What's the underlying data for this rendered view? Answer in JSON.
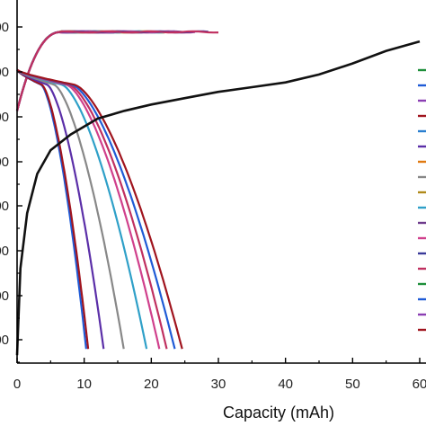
{
  "chart_data": {
    "type": "line",
    "xlabel": "Capacity (mAh)",
    "ylabel": "",
    "xlim": [
      0,
      60
    ],
    "ylim": [
      2.0,
      4.2
    ],
    "x_ticks": [
      "0",
      "10",
      "20",
      "30",
      "40",
      "50",
      "60"
    ],
    "y_ticks_visible": [
      "00",
      "00",
      "00",
      "00",
      "00",
      "00",
      "00"
    ],
    "grid": false,
    "legend": "right (clipped)",
    "colors": {
      "axis": "#000000",
      "black_series": "#111111",
      "series_palette": [
        "#1e8f3a",
        "#1f5bd6",
        "#8b3fb3",
        "#a0141e",
        "#2a7fd0",
        "#5b2fa8",
        "#e07a10",
        "#888888",
        "#b08a1a",
        "#2fa0c8",
        "#6e3b8c",
        "#d0408c",
        "#3a3a9a",
        "#c03060"
      ]
    },
    "series": [
      {
        "values": [
          [
            0,
            2.05
          ],
          [
            0.5,
            2.6
          ],
          [
            1.5,
            2.95
          ],
          [
            3,
            3.2
          ],
          [
            5,
            3.35
          ],
          [
            8,
            3.45
          ],
          [
            12,
            3.55
          ],
          [
            16,
            3.6
          ],
          [
            20,
            3.64
          ],
          [
            25,
            3.68
          ],
          [
            30,
            3.72
          ],
          [
            35,
            3.75
          ],
          [
            40,
            3.78
          ],
          [
            45,
            3.83
          ],
          [
            50,
            3.9
          ],
          [
            55,
            3.98
          ],
          [
            60,
            4.04
          ]
        ]
      }
    ],
    "charge_curve_ends": [
      10.0,
      11.5,
      13.0,
      14.5,
      16.0,
      17.5,
      19.0,
      20.5,
      22.0,
      23.5,
      25.0,
      26.5,
      28.5,
      30.0
    ],
    "discharge_curve_ends": [
      10.3,
      10.6,
      12.9,
      15.9,
      19.3,
      21.2,
      22.3,
      23.5,
      24.6
    ]
  }
}
